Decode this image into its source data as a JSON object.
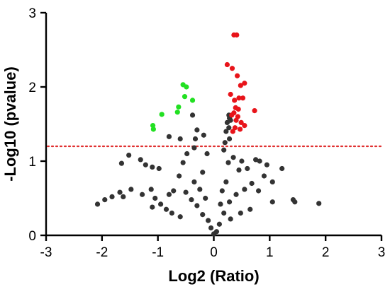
{
  "chart_data": {
    "type": "scatter",
    "title": "",
    "xlabel": "Log2 (Ratio)",
    "ylabel": "-Log10 (pvalue)",
    "xlim": [
      -3,
      3
    ],
    "ylim": [
      0,
      3
    ],
    "x_ticks": [
      -3,
      -2,
      -1,
      0,
      1,
      2,
      3
    ],
    "y_ticks": [
      0,
      1,
      2,
      3
    ],
    "x_tick_labels": [
      "-3",
      "-2",
      "-1",
      "0",
      "1",
      "2",
      "3"
    ],
    "y_tick_labels": [
      "0",
      "1",
      "2",
      "3"
    ],
    "threshold_line": {
      "y": 1.2,
      "style": "dotted",
      "color": "#e03030"
    },
    "grid": false,
    "legend": "none",
    "colors": {
      "up": "#e8141a",
      "down": "#22e022",
      "ns": "#333333"
    },
    "series": [
      {
        "category": "up",
        "points": [
          [
            0.36,
            2.7
          ],
          [
            0.41,
            2.7
          ],
          [
            0.24,
            2.3
          ],
          [
            0.33,
            2.25
          ],
          [
            0.42,
            2.15
          ],
          [
            0.48,
            2.02
          ],
          [
            0.55,
            2.05
          ],
          [
            0.3,
            1.9
          ],
          [
            0.37,
            1.82
          ],
          [
            0.45,
            1.85
          ],
          [
            0.52,
            1.85
          ],
          [
            0.39,
            1.72
          ],
          [
            0.44,
            1.7
          ],
          [
            0.36,
            1.65
          ],
          [
            0.43,
            1.6
          ],
          [
            0.32,
            1.62
          ],
          [
            0.4,
            1.55
          ],
          [
            0.49,
            1.52
          ],
          [
            0.55,
            1.48
          ],
          [
            0.38,
            1.45
          ],
          [
            0.47,
            1.43
          ],
          [
            0.34,
            1.4
          ],
          [
            0.73,
            1.68
          ]
        ]
      },
      {
        "category": "down",
        "points": [
          [
            -0.55,
            2.03
          ],
          [
            -0.49,
            2.0
          ],
          [
            -0.52,
            1.87
          ],
          [
            -0.38,
            1.82
          ],
          [
            -0.63,
            1.73
          ],
          [
            -0.65,
            1.66
          ],
          [
            -0.93,
            1.63
          ],
          [
            -1.09,
            1.48
          ],
          [
            -1.08,
            1.43
          ]
        ]
      },
      {
        "category": "ns",
        "points": [
          [
            0.27,
            1.62
          ],
          [
            0.28,
            1.58
          ],
          [
            0.24,
            1.52
          ],
          [
            0.3,
            1.55
          ],
          [
            -0.38,
            1.62
          ],
          [
            0.27,
            1.45
          ],
          [
            0.22,
            1.4
          ],
          [
            0.28,
            1.3
          ],
          [
            -0.3,
            1.42
          ],
          [
            -0.18,
            1.35
          ],
          [
            0.2,
            1.25
          ],
          [
            0.18,
            1.15
          ],
          [
            -0.12,
            1.1
          ],
          [
            -0.33,
            1.3
          ],
          [
            -0.6,
            1.3
          ],
          [
            -0.8,
            1.33
          ],
          [
            -0.35,
            1.18
          ],
          [
            -1.52,
            1.08
          ],
          [
            -1.31,
            1.02
          ],
          [
            -1.1,
            0.92
          ],
          [
            -0.55,
            0.98
          ],
          [
            -1.65,
            0.97
          ],
          [
            -0.98,
            0.9
          ],
          [
            -1.22,
            0.95
          ],
          [
            -1.12,
            0.62
          ],
          [
            -1.48,
            0.62
          ],
          [
            -1.68,
            0.58
          ],
          [
            -1.82,
            0.52
          ],
          [
            -2.08,
            0.42
          ],
          [
            -1.95,
            0.48
          ],
          [
            -1.62,
            0.52
          ],
          [
            -1.28,
            0.55
          ],
          [
            -1.05,
            0.5
          ],
          [
            -0.95,
            0.42
          ],
          [
            -1.1,
            0.38
          ],
          [
            -0.85,
            0.35
          ],
          [
            -0.72,
            0.6
          ],
          [
            -0.5,
            0.58
          ],
          [
            -0.4,
            0.48
          ],
          [
            -0.3,
            0.4
          ],
          [
            -0.2,
            0.28
          ],
          [
            -0.1,
            0.2
          ],
          [
            -0.05,
            0.1
          ],
          [
            0.0,
            0.02
          ],
          [
            0.05,
            0.05
          ],
          [
            0.1,
            0.15
          ],
          [
            0.18,
            0.3
          ],
          [
            0.28,
            0.45
          ],
          [
            0.4,
            0.55
          ],
          [
            0.55,
            0.62
          ],
          [
            0.68,
            0.7
          ],
          [
            0.8,
            0.6
          ],
          [
            0.9,
            0.8
          ],
          [
            1.05,
            0.72
          ],
          [
            1.22,
            0.9
          ],
          [
            1.05,
            0.45
          ],
          [
            1.42,
            0.48
          ],
          [
            1.45,
            0.45
          ],
          [
            1.88,
            0.43
          ],
          [
            0.45,
            0.88
          ],
          [
            0.6,
            0.9
          ],
          [
            0.75,
            1.02
          ],
          [
            0.35,
            1.05
          ],
          [
            0.5,
            1.0
          ],
          [
            0.82,
            1.0
          ],
          [
            0.95,
            0.95
          ],
          [
            0.65,
            0.35
          ],
          [
            0.48,
            0.3
          ],
          [
            0.3,
            0.22
          ],
          [
            -0.6,
            0.25
          ],
          [
            -0.75,
            0.3
          ],
          [
            -0.35,
            0.72
          ],
          [
            -0.62,
            0.8
          ],
          [
            -0.2,
            0.85
          ],
          [
            -0.8,
            0.55
          ],
          [
            -0.48,
            1.1
          ],
          [
            0.26,
            0.98
          ],
          [
            0.22,
            0.72
          ],
          [
            -0.25,
            0.62
          ],
          [
            -0.15,
            0.5
          ],
          [
            0.15,
            0.6
          ],
          [
            0.12,
            0.42
          ]
        ]
      }
    ]
  }
}
